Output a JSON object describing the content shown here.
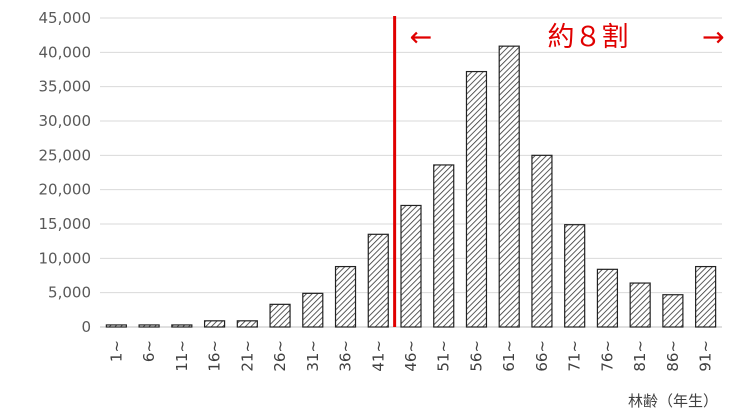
{
  "chart_data": {
    "type": "bar",
    "title": "",
    "xlabel": "林齢（年生）",
    "ylabel": "",
    "categories": [
      "1~",
      "6~",
      "11~",
      "16~",
      "21~",
      "26~",
      "31~",
      "36~",
      "41~",
      "46~",
      "51~",
      "56~",
      "61~",
      "66~",
      "71~",
      "76~",
      "81~",
      "86~",
      "91~"
    ],
    "values": [
      300,
      300,
      300,
      900,
      900,
      3300,
      4900,
      8800,
      13500,
      17700,
      23600,
      37200,
      40900,
      25000,
      14900,
      8400,
      6400,
      4700,
      8800
    ],
    "ylim": [
      0,
      45000
    ],
    "yticks": [
      "0",
      "5,000",
      "10,000",
      "15,000",
      "20,000",
      "25,000",
      "30,000",
      "35,000",
      "40,000",
      "45,000"
    ],
    "ytick_values": [
      0,
      5000,
      10000,
      15000,
      20000,
      25000,
      30000,
      35000,
      40000,
      45000
    ],
    "grid": true,
    "bar_pattern": "diagonal-hatch",
    "colors": {
      "bar_fill": "#ffffff",
      "bar_hatch": "#333333",
      "bar_edge": "#222222",
      "grid": "#d9d9d9",
      "marker": "#e00000"
    },
    "divider_after_category": "41~",
    "annotation": {
      "text": "約８割",
      "left_arrow": "←",
      "right_arrow": "→"
    }
  }
}
